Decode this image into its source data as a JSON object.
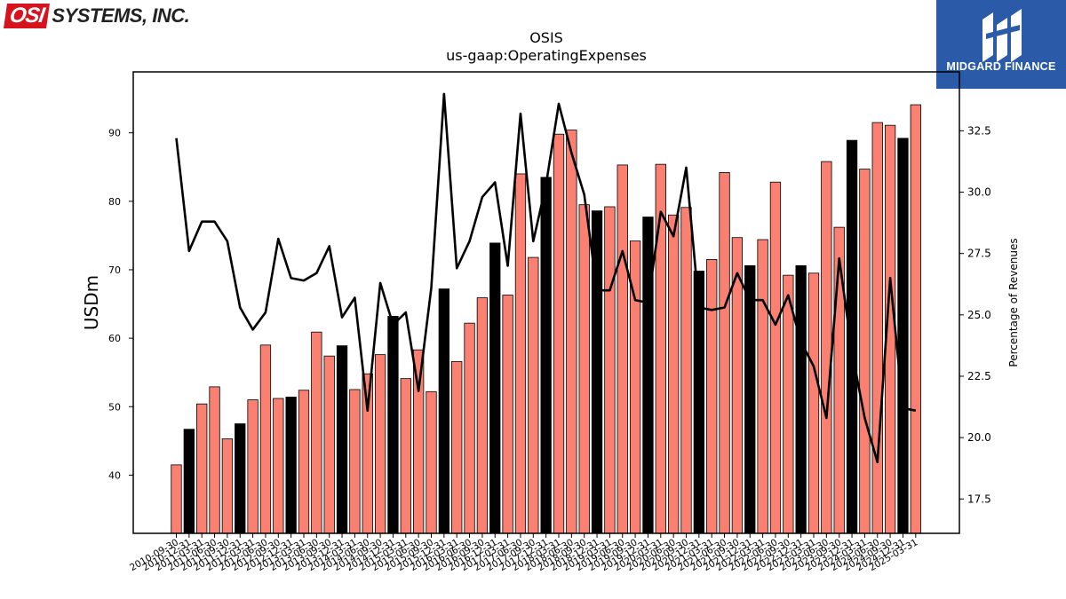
{
  "logos": {
    "left_mark": "OSI",
    "left_text": "SYSTEMS, INC.",
    "right_text": "MIDGARD FINANCE"
  },
  "colors": {
    "bar_default": "#fa8072",
    "bar_highlight": "#000000",
    "line": "#000000",
    "brand_red": "#d7141e",
    "brand_blue": "#2b5ba8"
  },
  "chart_data": {
    "type": "bar",
    "title": "OSIS",
    "subtitle": "us-gaap:OperatingExpenses",
    "ylabel": "USDm",
    "y2label": "Percentage of Revenues",
    "ylim": [
      31.5,
      98.9
    ],
    "y2lim": [
      16.1,
      34.9
    ],
    "yticks": [
      40,
      50,
      60,
      70,
      80,
      90
    ],
    "y2ticks": [
      "17.5",
      "20.0",
      "22.5",
      "25.0",
      "27.5",
      "30.0",
      "32.5"
    ],
    "grid": false,
    "categories": [
      "2010-09-30",
      "2010-12-31",
      "2011-03-31",
      "2011-06-30",
      "2011-09-30",
      "2011-12-31",
      "2012-03-31",
      "2012-06-30",
      "2012-09-30",
      "2012-12-31",
      "2013-03-31",
      "2013-06-30",
      "2013-09-30",
      "2013-12-31",
      "2014-03-31",
      "2014-06-30",
      "2014-09-30",
      "2014-12-31",
      "2015-03-31",
      "2015-06-30",
      "2015-09-30",
      "2015-12-31",
      "2016-03-31",
      "2016-06-30",
      "2016-09-30",
      "2016-12-31",
      "2017-03-31",
      "2017-06-30",
      "2017-09-30",
      "2017-12-31",
      "2018-03-31",
      "2018-06-30",
      "2018-09-30",
      "2018-12-31",
      "2019-03-31",
      "2019-06-30",
      "2019-09-30",
      "2019-12-31",
      "2020-03-31",
      "2020-06-30",
      "2020-09-30",
      "2020-12-31",
      "2021-03-31",
      "2021-06-30",
      "2021-09-30",
      "2021-12-31",
      "2022-03-31",
      "2022-06-30",
      "2022-09-30",
      "2022-12-31",
      "2023-03-31",
      "2023-06-30",
      "2023-09-30",
      "2023-12-31",
      "2024-03-31",
      "2024-06-30",
      "2024-09-30",
      "2024-12-31",
      "2025-03-31"
    ],
    "series": [
      {
        "kind": "bar",
        "axis": "left",
        "values": [
          41.5,
          46.7,
          50.4,
          52.9,
          45.3,
          47.5,
          51.0,
          59.0,
          51.2,
          51.4,
          52.4,
          60.9,
          57.4,
          58.9,
          52.5,
          54.8,
          57.6,
          63.2,
          54.1,
          58.3,
          52.2,
          67.2,
          56.6,
          62.2,
          65.9,
          73.9,
          66.3,
          84.0,
          71.8,
          83.5,
          89.8,
          90.4,
          79.5,
          78.6,
          79.2,
          85.3,
          74.2,
          77.7,
          85.4,
          78.0,
          79.1,
          69.8,
          71.5,
          84.2,
          74.7,
          70.6,
          74.4,
          82.8,
          69.2,
          70.6,
          69.5,
          85.8,
          76.2,
          88.9,
          84.7,
          91.5,
          91.1,
          89.2,
          94.1
        ],
        "highlight": [
          false,
          true,
          false,
          false,
          false,
          true,
          false,
          false,
          false,
          true,
          false,
          false,
          false,
          true,
          false,
          false,
          false,
          true,
          false,
          false,
          false,
          true,
          false,
          false,
          false,
          true,
          false,
          false,
          false,
          true,
          false,
          false,
          false,
          true,
          false,
          false,
          false,
          true,
          false,
          false,
          false,
          true,
          false,
          false,
          false,
          true,
          false,
          false,
          false,
          true,
          false,
          false,
          false,
          true,
          false,
          false,
          false,
          true,
          false
        ]
      },
      {
        "kind": "line",
        "axis": "right",
        "values": [
          32.2,
          27.6,
          28.8,
          28.8,
          28.0,
          25.3,
          24.4,
          25.1,
          28.1,
          26.5,
          26.4,
          26.7,
          27.8,
          24.9,
          25.7,
          21.1,
          26.3,
          24.6,
          25.1,
          21.9,
          26.1,
          34.0,
          26.9,
          28.0,
          29.8,
          30.4,
          27.0,
          33.2,
          28.0,
          30.3,
          33.6,
          31.6,
          29.9,
          26.0,
          26.0,
          27.6,
          25.6,
          25.5,
          29.2,
          28.2,
          31.0,
          25.3,
          25.2,
          25.3,
          26.7,
          25.6,
          25.6,
          24.6,
          25.8,
          23.9,
          22.9,
          20.8,
          27.3,
          23.5,
          20.8,
          19.0,
          26.5,
          21.2,
          21.1
        ]
      }
    ]
  }
}
